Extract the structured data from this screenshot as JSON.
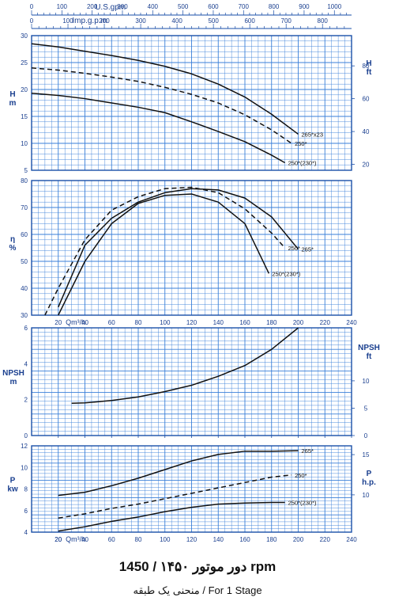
{
  "captions": {
    "line1": "دور موتور ۱۴۵۰ / 1450 rpm",
    "line2": "منحنی یک طبقه / For 1 Stage"
  },
  "colors": {
    "background": "#ffffff",
    "grid": "#3a7fd8",
    "frame": "#1a4fa8",
    "curve": "#111111",
    "text": "#1a3f8f"
  },
  "top_axes": {
    "usgpm": {
      "label": "U.S.gpm",
      "ticks": [
        0,
        100,
        200,
        300,
        400,
        500,
        600,
        700,
        800,
        900,
        1000
      ]
    },
    "impgpm": {
      "label": "Imp.g.p.m",
      "ticks": [
        0,
        100,
        200,
        300,
        400,
        500,
        600,
        700,
        800
      ]
    }
  },
  "x_axis": {
    "label": "Qm³/h",
    "range": [
      0,
      240
    ],
    "ticks": [
      20,
      40,
      60,
      80,
      100,
      120,
      140,
      160,
      180,
      200,
      220,
      240
    ]
  },
  "chart_data": [
    {
      "type": "line",
      "name": "head",
      "ylabel": "H\nm",
      "ylabel_right": "H\nft",
      "xlim": [
        0,
        240
      ],
      "ylim": [
        5,
        30
      ],
      "yticks": [
        5,
        10,
        15,
        20,
        25,
        30
      ],
      "yticks_right": [
        20,
        40,
        60,
        80
      ],
      "grid": true,
      "series": [
        {
          "name": "265*x23",
          "dashed": false,
          "x": [
            0,
            20,
            40,
            60,
            80,
            100,
            120,
            140,
            160,
            180,
            200
          ],
          "y": [
            28.5,
            27.9,
            27.1,
            26.3,
            25.4,
            24.3,
            22.9,
            21.0,
            18.6,
            15.4,
            11.7
          ]
        },
        {
          "name": "250*",
          "dashed": true,
          "x": [
            0,
            20,
            40,
            60,
            80,
            100,
            120,
            140,
            160,
            180,
            195
          ],
          "y": [
            24.0,
            23.6,
            23.0,
            22.3,
            21.5,
            20.4,
            19.1,
            17.5,
            15.3,
            12.5,
            10.0
          ]
        },
        {
          "name": "250*(230*)",
          "dashed": false,
          "x": [
            0,
            20,
            40,
            60,
            80,
            100,
            120,
            140,
            160,
            180,
            190
          ],
          "y": [
            19.3,
            18.9,
            18.3,
            17.5,
            16.7,
            15.7,
            14.0,
            12.2,
            10.3,
            7.8,
            6.4
          ]
        }
      ]
    },
    {
      "type": "line",
      "name": "efficiency",
      "ylabel": "η\n%",
      "xlim": [
        0,
        240
      ],
      "ylim": [
        30,
        80
      ],
      "yticks": [
        30,
        40,
        50,
        60,
        70,
        80
      ],
      "grid": true,
      "series": [
        {
          "name": "265*",
          "dashed": false,
          "x": [
            20,
            40,
            60,
            80,
            100,
            120,
            140,
            160,
            180,
            200
          ],
          "y": [
            33,
            56,
            66,
            72,
            75.5,
            77,
            76.5,
            73.5,
            66.5,
            54.5
          ]
        },
        {
          "name": "250*",
          "dashed": true,
          "x": [
            10,
            20,
            40,
            60,
            80,
            100,
            120,
            140,
            160,
            180,
            190
          ],
          "y": [
            30,
            40,
            58,
            69,
            74,
            77,
            77.5,
            75.5,
            69.5,
            60.5,
            55
          ]
        },
        {
          "name": "250*(230*)",
          "dashed": false,
          "x": [
            20,
            40,
            60,
            80,
            100,
            120,
            140,
            160,
            178
          ],
          "y": [
            30,
            50,
            64,
            71.5,
            74.5,
            75,
            72,
            64,
            45.5
          ]
        }
      ]
    },
    {
      "type": "line",
      "name": "npsh",
      "ylabel": "NPSH\nm",
      "ylabel_right": "NPSH\nft",
      "xlim": [
        0,
        240
      ],
      "ylim": [
        0,
        6
      ],
      "yticks": [
        0,
        2,
        4,
        6
      ],
      "yticks_right": [
        0,
        5,
        10
      ],
      "grid": true,
      "series": [
        {
          "name": "",
          "dashed": false,
          "x": [
            30,
            40,
            60,
            80,
            100,
            120,
            140,
            160,
            180,
            200
          ],
          "y": [
            1.8,
            1.82,
            1.95,
            2.15,
            2.45,
            2.8,
            3.3,
            3.9,
            4.8,
            6.0
          ]
        }
      ]
    },
    {
      "type": "line",
      "name": "power",
      "ylabel": "P\nkw",
      "ylabel_right": "P\nh.p.",
      "xlim": [
        0,
        240
      ],
      "ylim": [
        4,
        12
      ],
      "yticks": [
        4,
        6,
        8,
        10,
        12
      ],
      "yticks_right": [
        5,
        10,
        15
      ],
      "grid": true,
      "series": [
        {
          "name": "265*",
          "dashed": false,
          "x": [
            20,
            40,
            60,
            80,
            100,
            120,
            140,
            160,
            180,
            200
          ],
          "y": [
            7.4,
            7.7,
            8.3,
            9.0,
            9.8,
            10.6,
            11.2,
            11.5,
            11.5,
            11.55
          ]
        },
        {
          "name": "250*",
          "dashed": true,
          "x": [
            20,
            40,
            60,
            80,
            100,
            120,
            140,
            160,
            180,
            195
          ],
          "y": [
            5.3,
            5.7,
            6.2,
            6.6,
            7.1,
            7.6,
            8.1,
            8.6,
            9.1,
            9.3
          ]
        },
        {
          "name": "250*(230*)",
          "dashed": false,
          "x": [
            20,
            40,
            60,
            80,
            100,
            120,
            140,
            160,
            180,
            190
          ],
          "y": [
            4.1,
            4.5,
            5.0,
            5.4,
            5.9,
            6.3,
            6.6,
            6.7,
            6.75,
            6.75
          ]
        }
      ]
    }
  ]
}
